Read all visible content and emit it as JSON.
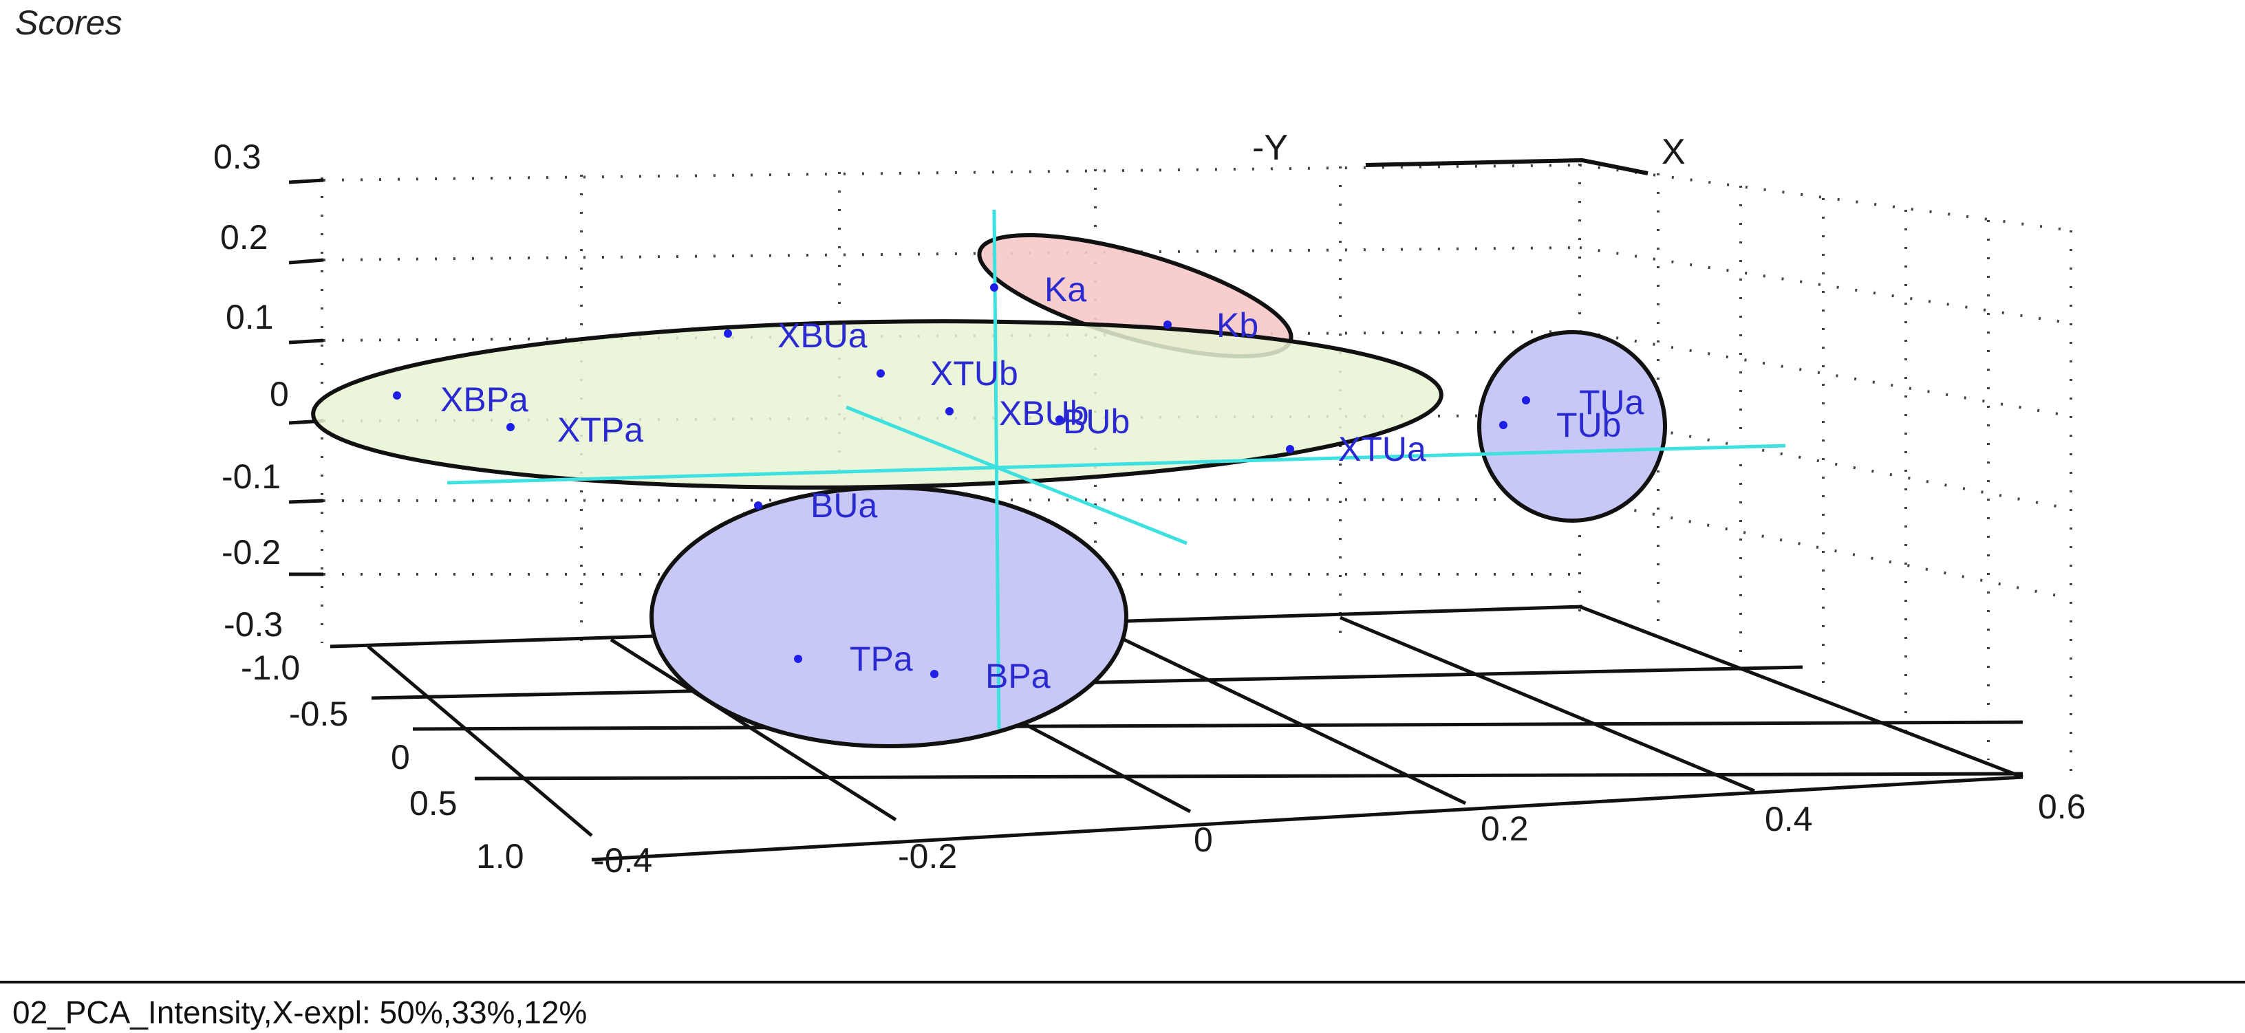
{
  "panel_title": "Scores",
  "footer": "02_PCA_Intensity,X-expl: 50%,33%,12%",
  "chart_data": {
    "type": "scatter",
    "projection": "3d",
    "x_axis": {
      "ticks": [
        "-0.4",
        "-0.2",
        "0",
        "0.2",
        "0.4",
        "0.6"
      ],
      "range": [
        -0.4,
        0.6
      ]
    },
    "y_axis": {
      "ticks": [
        "-1.0",
        "-0.5",
        "0",
        "0.5",
        "1.0"
      ],
      "range": [
        -1.0,
        1.0
      ]
    },
    "z_axis": {
      "ticks": [
        "0.3",
        "0.2",
        "0.1",
        "0",
        "-0.1",
        "-0.2",
        "-0.3"
      ],
      "range": [
        -0.3,
        0.3
      ]
    },
    "orientation_labels": {
      "x": "X",
      "y": "-Y"
    },
    "grid": true,
    "points": [
      {
        "label": "Ka"
      },
      {
        "label": "Kb"
      },
      {
        "label": "XBUa"
      },
      {
        "label": "XTUb"
      },
      {
        "label": "XBPa"
      },
      {
        "label": "XTPa"
      },
      {
        "label": "XBUb"
      },
      {
        "label": "BUb"
      },
      {
        "label": "XTUa"
      },
      {
        "label": "TUa"
      },
      {
        "label": "TUb"
      },
      {
        "label": "BUa"
      },
      {
        "label": "TPa"
      },
      {
        "label": "BPa"
      }
    ],
    "group_colors": [
      "#f6c8c8",
      "#e8f3d4",
      "#c8c8f6"
    ]
  }
}
